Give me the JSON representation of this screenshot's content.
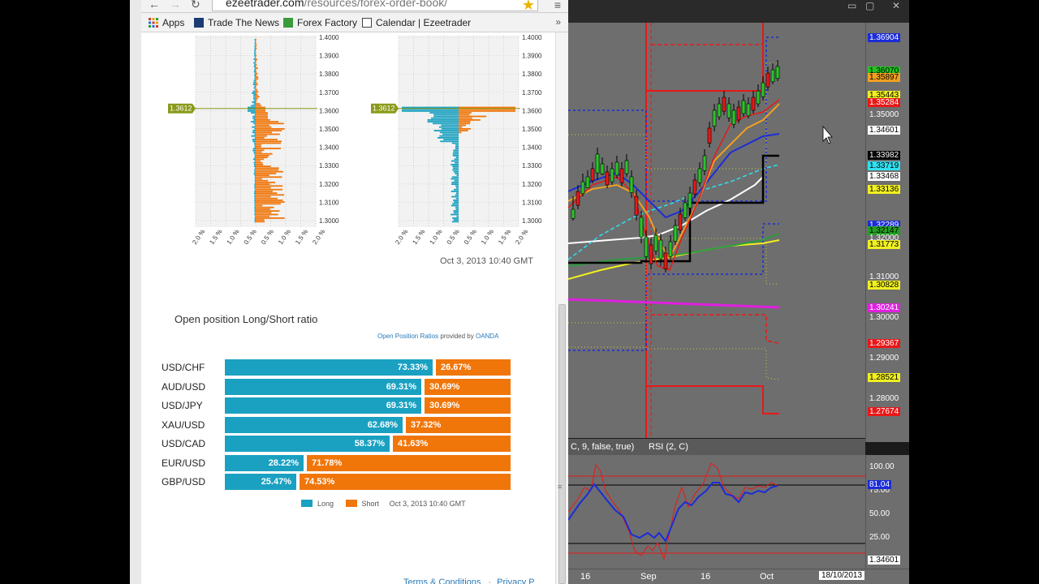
{
  "browser": {
    "url_host": "ezeetrader.com",
    "url_path": "/resources/forex-order-book/",
    "bookmarks": [
      {
        "label": "Apps",
        "icon": "apps-grid-icon"
      },
      {
        "label": "Trade The News",
        "icon": "ttn-icon"
      },
      {
        "label": "Forex Factory",
        "icon": "forex-factory-icon"
      },
      {
        "label": "Calendar | Ezeetrader",
        "icon": "calendar-icon"
      }
    ],
    "bookmarks_more": "»"
  },
  "order_book": {
    "price_marker": "1.3612",
    "price_ticks": [
      "1.4000",
      "1.3900",
      "1.3800",
      "1.3700",
      "1.3600",
      "1.3500",
      "1.3400",
      "1.3300",
      "1.3200",
      "1.3100",
      "1.3000"
    ],
    "pct_ticks": [
      "2.0 %",
      "1.5 %",
      "1.0 %",
      "0.5 %",
      "0.5 %",
      "1.0 %",
      "1.5 %",
      "2.0 %"
    ],
    "timestamp": "Oct 3, 2013 10:40 GMT"
  },
  "ratios": {
    "title": "Open position Long/Short ratio",
    "credit_link": "Open Position Ratios",
    "credit_text": " provided by ",
    "credit_brand": "OANDA",
    "rows": [
      {
        "pair": "USD/CHF",
        "long": "73.33%",
        "short": "26.67%",
        "long_frac": 0.7333
      },
      {
        "pair": "AUD/USD",
        "long": "69.31%",
        "short": "30.69%",
        "long_frac": 0.6931
      },
      {
        "pair": "USD/JPY",
        "long": "69.31%",
        "short": "30.69%",
        "long_frac": 0.6931
      },
      {
        "pair": "XAU/USD",
        "long": "62.68%",
        "short": "37.32%",
        "long_frac": 0.6268
      },
      {
        "pair": "USD/CAD",
        "long": "58.37%",
        "short": "41.63%",
        "long_frac": 0.5837
      },
      {
        "pair": "EUR/USD",
        "long": "28.22%",
        "short": "71.78%",
        "long_frac": 0.2822
      },
      {
        "pair": "GBP/USD",
        "long": "25.47%",
        "short": "74.53%",
        "long_frac": 0.2547
      }
    ],
    "legend_long": "Long",
    "legend_short": "Short",
    "legend_timestamp": "Oct 3, 2013 10:40 GMT",
    "colors": {
      "long": "#1aa1c1",
      "short": "#f0760a"
    }
  },
  "footer": {
    "terms": "Terms & Conditions",
    "privacy": "Privacy P"
  },
  "platform": {
    "price_tags": [
      {
        "text": "1.36904",
        "bg": "#1c2cd8",
        "fg": "#fff"
      },
      {
        "text": "1.36070",
        "bg": "#22c422",
        "fg": "#000"
      },
      {
        "text": "1.35897",
        "bg": "#f0a020",
        "fg": "#000"
      },
      {
        "text": "1.35443",
        "bg": "#f0f020",
        "fg": "#000"
      },
      {
        "text": "1.35284",
        "bg": "#e81818",
        "fg": "#fff"
      },
      {
        "text": "1.34601",
        "bg": "#ffffff",
        "fg": "#000"
      },
      {
        "text": "1.33982",
        "bg": "#000000",
        "fg": "#fff"
      },
      {
        "text": "1.33719",
        "bg": "#30e0f0",
        "fg": "#000"
      },
      {
        "text": "1.33468",
        "bg": "#ffffff",
        "fg": "#000"
      },
      {
        "text": "1.33136",
        "bg": "#f0f020",
        "fg": "#000"
      },
      {
        "text": "1.32289",
        "bg": "#1c2cd8",
        "fg": "#fff"
      },
      {
        "text": "1.32147",
        "bg": "#22a022",
        "fg": "#000"
      },
      {
        "text": "1.31773",
        "bg": "#f0f020",
        "fg": "#000"
      },
      {
        "text": "1.30828",
        "bg": "#f0f020",
        "fg": "#000"
      },
      {
        "text": "1.30241",
        "bg": "#e020e0",
        "fg": "#fff"
      },
      {
        "text": "1.29367",
        "bg": "#e81818",
        "fg": "#fff"
      },
      {
        "text": "1.28521",
        "bg": "#f0f020",
        "fg": "#000"
      },
      {
        "text": "1.27674",
        "bg": "#e81818",
        "fg": "#fff"
      }
    ],
    "price_levels": [
      "1.35000",
      "1.32000",
      "1.31000",
      "1.30000",
      "1.29000",
      "1.28000"
    ],
    "rsi_header_left": "C, 9, false, true)",
    "rsi_header_right": "RSI (2, C)",
    "rsi_levels": [
      "100.00",
      "75.00",
      "50.00",
      "25.00"
    ],
    "rsi_value": "81.04",
    "rsi_price_tag": "1.34601",
    "time_labels": [
      "16",
      "Sep",
      "16",
      "Oct"
    ],
    "time_tag": "18/10/2013"
  }
}
